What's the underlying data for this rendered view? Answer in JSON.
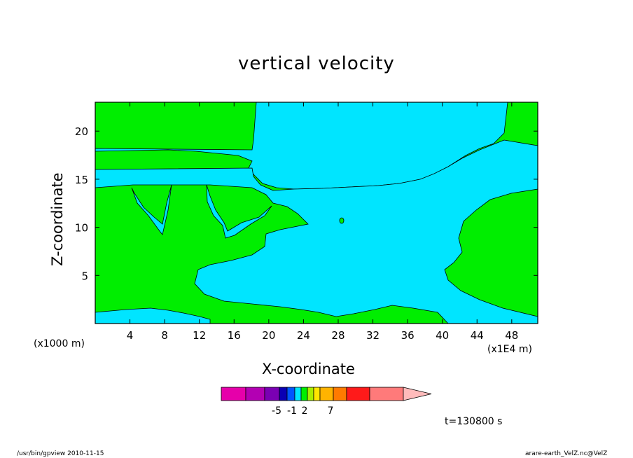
{
  "chart_data": {
    "type": "contour",
    "title": "vertical velocity",
    "xlabel": "X-coordinate",
    "ylabel": "Z-coordinate",
    "x_unit_note": "(x1000 m)",
    "x_unit_note2": "(x1E4 m)",
    "xlim": [
      0,
      51
    ],
    "ylim": [
      0,
      23
    ],
    "xticks": [
      4,
      8,
      12,
      16,
      20,
      24,
      28,
      32,
      36,
      40,
      44,
      48
    ],
    "yticks": [
      5,
      10,
      15,
      20
    ],
    "fill_colors": {
      "positive": "#00ee00",
      "negative": "#00e5ff"
    },
    "colorbar": {
      "colors": [
        "#e600aa",
        "#b300b3",
        "#7a00b3",
        "#0a00b3",
        "#0055ff",
        "#00e5ff",
        "#00ee00",
        "#aaee00",
        "#ffe600",
        "#ffb300",
        "#ff7a00",
        "#ff1a1a",
        "#ff7a7a",
        "#ffbbbb"
      ],
      "labels": [
        "-5",
        "-1",
        "2",
        "7"
      ]
    },
    "timestamp": "t=130800 s"
  },
  "footer": {
    "left": "/usr/bin/gpview   2010-11-15",
    "right": "arare-earth_VelZ.nc@VelZ"
  }
}
